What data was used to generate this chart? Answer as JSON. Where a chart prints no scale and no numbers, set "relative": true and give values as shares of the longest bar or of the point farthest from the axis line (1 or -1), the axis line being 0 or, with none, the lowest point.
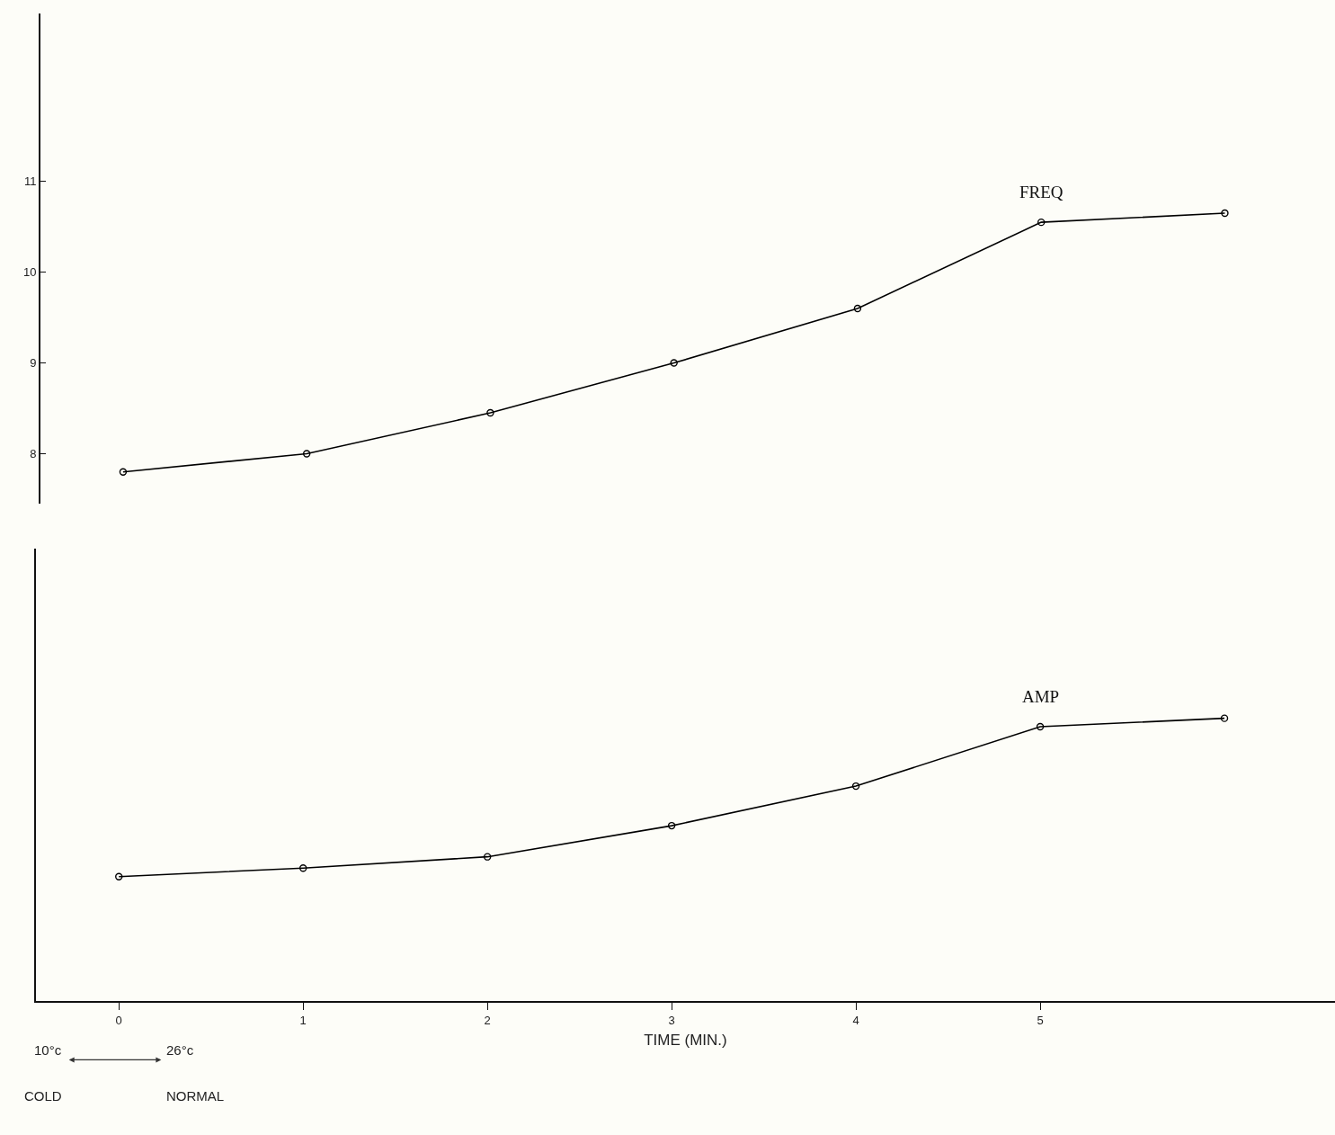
{
  "chart_data": [
    {
      "type": "line",
      "x": [
        0,
        1,
        2,
        3,
        4,
        5,
        6
      ],
      "series": [
        {
          "name": "FREQ",
          "color": "#000000",
          "values": [
            7.8,
            8.0,
            8.45,
            9.0,
            9.6,
            10.55,
            10.65
          ]
        }
      ],
      "xlim": [
        -0.45,
        6.6
      ],
      "ylim": [
        7.45,
        12.85
      ],
      "yticks": [
        8,
        9,
        10,
        11
      ],
      "tick_labels": "y",
      "marker": "circle",
      "line_style": "solid",
      "grid": false,
      "legend": false
    },
    {
      "type": "line",
      "x": [
        0,
        1,
        2,
        3,
        4,
        5,
        6
      ],
      "series": [
        {
          "name": "AMP",
          "color": "#000000",
          "values": [
            0.44,
            0.47,
            0.51,
            0.62,
            0.76,
            0.97,
            1
          ]
        }
      ],
      "relative": true,
      "xlim": [
        -0.45,
        6.6
      ],
      "xticks": [
        0,
        1,
        2,
        3,
        4,
        5
      ],
      "xlabel": "TIME (MIN.)",
      "tick_labels": "x",
      "marker": "circle",
      "line_style": "solid",
      "grid": false,
      "legend": false,
      "annotations": [
        "10°c",
        "26°c",
        "COLD",
        "NORMAL"
      ]
    }
  ]
}
